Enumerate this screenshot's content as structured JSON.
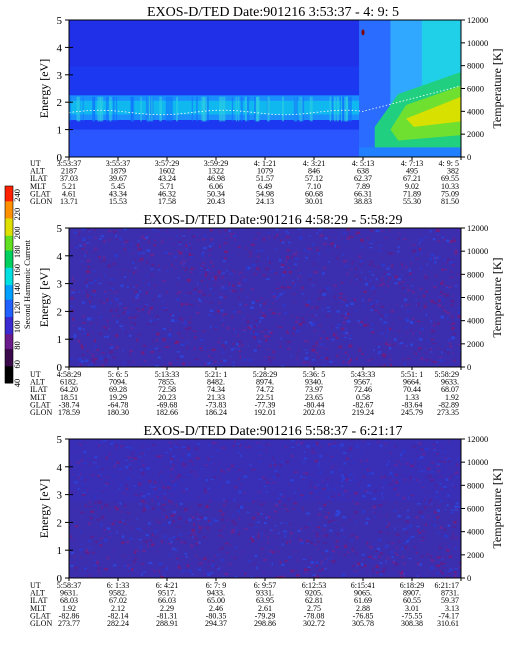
{
  "chart_data": [
    {
      "type": "heatmap",
      "title": "EXOS-D/TED   Date:901216  3:53:37 - 4: 9: 5",
      "ylabel": "Energy [eV]",
      "y2label": "Temperature [K]",
      "ylim": [
        0,
        5
      ],
      "y2lim": [
        0,
        12000
      ],
      "yticks": [
        "0",
        "1",
        "2",
        "3",
        "4",
        "5"
      ],
      "y2ticks": [
        "0",
        "2000",
        "4000",
        "6000",
        "8000",
        "10000",
        "12000"
      ],
      "orbit_table": {
        "rows": [
          {
            "label": "UT",
            "values": [
              "3:53:37",
              "3:55:37",
              "3:57:29",
              "3:59:29",
              "4: 1:21",
              "4: 3:21",
              "4: 5:13",
              "4: 7:13",
              "4: 9: 5"
            ]
          },
          {
            "label": "ALT",
            "values": [
              "2187",
              "1879",
              "1602",
              "1322",
              "1079",
              "846",
              "638",
              "495",
              "382"
            ]
          },
          {
            "label": "ILAT",
            "values": [
              "37.03",
              "39.67",
              "43.24",
              "46.98",
              "51.57",
              "57.12",
              "62.37",
              "67.21",
              "69.55"
            ]
          },
          {
            "label": "MLT",
            "values": [
              "5.21",
              "5.45",
              "5.71",
              "6.06",
              "6.49",
              "7.10",
              "7.89",
              "9.02",
              "10.33"
            ]
          },
          {
            "label": "GLAT",
            "values": [
              "4.61",
              "43.34",
              "46.32",
              "50.34",
              "54.98",
              "60.68",
              "66.31",
              "71.89",
              "75.09"
            ]
          },
          {
            "label": "GLON",
            "values": [
              "13.71",
              "15.53",
              "17.58",
              "20.43",
              "24.13",
              "30.01",
              "38.83",
              "55.30",
              "81.50"
            ]
          }
        ]
      },
      "features": "low energy band 1-2.2 eV with enhanced intensity from ~4:5 onwards, intensity decreasing with energy"
    },
    {
      "type": "heatmap",
      "title": "EXOS-D/TED   Date:901216  4:58:29 - 5:58:29",
      "ylabel": "Energy [eV]",
      "y2label": "Temperature [K]",
      "ylim": [
        0,
        5
      ],
      "y2lim": [
        0,
        12000
      ],
      "yticks": [
        "0",
        "1",
        "2",
        "3",
        "4",
        "5"
      ],
      "y2ticks": [
        "0",
        "2000",
        "4000",
        "6000",
        "8000",
        "10000",
        "12000"
      ],
      "orbit_table": {
        "rows": [
          {
            "label": "UT",
            "values": [
              "4:58:29",
              "5: 6: 5",
              "5:13:33",
              "5:21: 1",
              "5:28:29",
              "5:36: 5",
              "5:43:33",
              "5:51: 1",
              "5:58:29"
            ]
          },
          {
            "label": "ALT",
            "values": [
              "6182.",
              "7094.",
              "7855.",
              "8482.",
              "8974.",
              "9340.",
              "9567.",
              "9664.",
              "9633."
            ]
          },
          {
            "label": "ILAT",
            "values": [
              "64.20",
              "69.28",
              "72.58",
              "74.34",
              "74.72",
              "73.97",
              "72.46",
              "70.44",
              "68.07"
            ]
          },
          {
            "label": "MLT",
            "values": [
              "18.51",
              "19.29",
              "20.23",
              "21.33",
              "22.51",
              "23.65",
              "0.58",
              "1.33",
              "1.92"
            ]
          },
          {
            "label": "GLAT",
            "values": [
              "-38.74",
              "-64.78",
              "-69.68",
              "-73.83",
              "-77.39",
              "-80.44",
              "-82.67",
              "-83.64",
              "-82.89"
            ]
          },
          {
            "label": "GLON",
            "values": [
              "178.59",
              "180.30",
              "182.66",
              "186.24",
              "192.01",
              "202.03",
              "219.24",
              "245.79",
              "273.35"
            ]
          }
        ]
      },
      "features": "uniform low-level background noise"
    },
    {
      "type": "heatmap",
      "title": "EXOS-D/TED   Date:901216  5:58:37 - 6:21:17",
      "ylabel": "Energy [eV]",
      "y2label": "Temperature [K]",
      "ylim": [
        0,
        5
      ],
      "y2lim": [
        0,
        12000
      ],
      "yticks": [
        "0",
        "1",
        "2",
        "3",
        "4",
        "5"
      ],
      "y2ticks": [
        "0",
        "2000",
        "4000",
        "6000",
        "8000",
        "10000",
        "12000"
      ],
      "orbit_table": {
        "rows": [
          {
            "label": "UT",
            "values": [
              "5:58:37",
              "6: 1:33",
              "6: 4:21",
              "6: 7: 9",
              "6: 9:57",
              "6:12:53",
              "6:15:41",
              "6:18:29",
              "6:21:17"
            ]
          },
          {
            "label": "ALT",
            "values": [
              "9631.",
              "9582.",
              "9517.",
              "9433.",
              "9331.",
              "9205.",
              "9065.",
              "8907.",
              "8731."
            ]
          },
          {
            "label": "ILAT",
            "values": [
              "68.03",
              "67.02",
              "66.03",
              "65.00",
              "63.95",
              "62.81",
              "61.69",
              "60.55",
              "59.37"
            ]
          },
          {
            "label": "MLT",
            "values": [
              "1.92",
              "2.12",
              "2.29",
              "2.46",
              "2.61",
              "2.75",
              "2.88",
              "3.01",
              "3.13"
            ]
          },
          {
            "label": "GLAT",
            "values": [
              "-82.86",
              "-82.14",
              "-81.31",
              "-80.35",
              "-79.29",
              "-78.08",
              "-76.85",
              "-75.55",
              "-74.17"
            ]
          },
          {
            "label": "GLON",
            "values": [
              "273.77",
              "282.24",
              "288.91",
              "294.37",
              "298.86",
              "302.72",
              "305.78",
              "308.38",
              "310.61"
            ]
          }
        ]
      },
      "features": "uniform low-level background noise"
    }
  ],
  "colorbar": {
    "label": "Second Harmonic Current",
    "ticks": [
      "40",
      "60",
      "80",
      "100",
      "120",
      "140",
      "160",
      "180",
      "200",
      "220",
      "240"
    ],
    "range": [
      40,
      250
    ],
    "colors": [
      "#000000",
      "#3a0a4a",
      "#6a1a8a",
      "#3a2ad0",
      "#2060ff",
      "#00a0ff",
      "#00e0e0",
      "#00d060",
      "#60e020",
      "#e0e000",
      "#ff9000",
      "#ff2000"
    ]
  }
}
